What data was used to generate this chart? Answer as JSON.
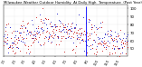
{
  "title": "Milwaukee Weather Outdoor Humidity  At Daily High  Temperature  (Past Year)",
  "title_fontsize": 2.8,
  "bg_color": "#ffffff",
  "plot_bg_color": "#ffffff",
  "grid_color": "#bbbbbb",
  "ylim": [
    40,
    105
  ],
  "ylabel_fontsize": 2.8,
  "xlabel_fontsize": 2.5,
  "dot_size": 0.4,
  "blue_color": "#3333cc",
  "red_color": "#cc2222",
  "n_points": 365,
  "seed": 42,
  "spike_idx": 242,
  "spike_color": "#0000ff"
}
